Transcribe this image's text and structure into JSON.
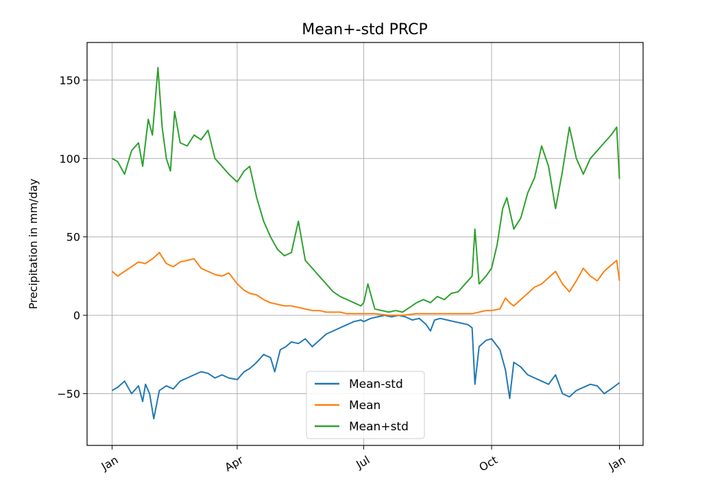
{
  "chart_data": {
    "type": "line",
    "title": "Mean+-std   PRCP",
    "xlabel": "",
    "ylabel": "Precipitation in mm/day",
    "x_ticks": [
      {
        "label": "Jan",
        "day": 1
      },
      {
        "label": "Apr",
        "day": 91
      },
      {
        "label": "Jul",
        "day": 182
      },
      {
        "label": "Oct",
        "day": 274
      },
      {
        "label": "Jan",
        "day": 366
      }
    ],
    "xlim": [
      -17,
      383
    ],
    "ylim": [
      -83,
      174
    ],
    "y_ticks": [
      -50,
      0,
      50,
      100,
      150
    ],
    "grid": true,
    "legend_position": "lower-center",
    "series": [
      {
        "name": "Mean-std",
        "color": "#1f77b4",
        "points": [
          [
            1,
            -48
          ],
          [
            5,
            -46
          ],
          [
            10,
            -42
          ],
          [
            15,
            -50
          ],
          [
            20,
            -45
          ],
          [
            23,
            -55
          ],
          [
            25,
            -44
          ],
          [
            28,
            -50
          ],
          [
            31,
            -66
          ],
          [
            35,
            -48
          ],
          [
            40,
            -45
          ],
          [
            45,
            -47
          ],
          [
            50,
            -42
          ],
          [
            55,
            -40
          ],
          [
            60,
            -38
          ],
          [
            65,
            -36
          ],
          [
            70,
            -37
          ],
          [
            75,
            -40
          ],
          [
            80,
            -38
          ],
          [
            85,
            -40
          ],
          [
            91,
            -41
          ],
          [
            96,
            -36
          ],
          [
            100,
            -34
          ],
          [
            105,
            -30
          ],
          [
            110,
            -25
          ],
          [
            115,
            -27
          ],
          [
            118,
            -36
          ],
          [
            122,
            -22
          ],
          [
            126,
            -20
          ],
          [
            130,
            -17
          ],
          [
            135,
            -18
          ],
          [
            140,
            -15
          ],
          [
            145,
            -20
          ],
          [
            150,
            -16
          ],
          [
            155,
            -12
          ],
          [
            160,
            -10
          ],
          [
            165,
            -8
          ],
          [
            170,
            -6
          ],
          [
            175,
            -4
          ],
          [
            180,
            -3
          ],
          [
            182,
            -4
          ],
          [
            187,
            -2
          ],
          [
            192,
            -1
          ],
          [
            197,
            0
          ],
          [
            202,
            -1
          ],
          [
            207,
            0
          ],
          [
            212,
            -1
          ],
          [
            217,
            -3
          ],
          [
            222,
            -2
          ],
          [
            227,
            -6
          ],
          [
            230,
            -10
          ],
          [
            233,
            -3
          ],
          [
            237,
            -2
          ],
          [
            242,
            -3
          ],
          [
            247,
            -4
          ],
          [
            252,
            -5
          ],
          [
            257,
            -6
          ],
          [
            260,
            -8
          ],
          [
            262,
            -44
          ],
          [
            265,
            -20
          ],
          [
            270,
            -16
          ],
          [
            274,
            -15
          ],
          [
            280,
            -22
          ],
          [
            284,
            -35
          ],
          [
            287,
            -53
          ],
          [
            290,
            -30
          ],
          [
            295,
            -33
          ],
          [
            300,
            -38
          ],
          [
            305,
            -40
          ],
          [
            310,
            -42
          ],
          [
            315,
            -44
          ],
          [
            320,
            -38
          ],
          [
            325,
            -50
          ],
          [
            330,
            -52
          ],
          [
            335,
            -48
          ],
          [
            340,
            -46
          ],
          [
            345,
            -44
          ],
          [
            350,
            -45
          ],
          [
            355,
            -50
          ],
          [
            360,
            -47
          ],
          [
            366,
            -43
          ]
        ]
      },
      {
        "name": "Mean",
        "color": "#ff7f0e",
        "points": [
          [
            1,
            28
          ],
          [
            5,
            25
          ],
          [
            10,
            28
          ],
          [
            15,
            31
          ],
          [
            20,
            34
          ],
          [
            25,
            33
          ],
          [
            30,
            36
          ],
          [
            35,
            40
          ],
          [
            40,
            33
          ],
          [
            45,
            31
          ],
          [
            50,
            34
          ],
          [
            55,
            35
          ],
          [
            60,
            36
          ],
          [
            65,
            30
          ],
          [
            70,
            28
          ],
          [
            75,
            26
          ],
          [
            80,
            25
          ],
          [
            85,
            27
          ],
          [
            91,
            20
          ],
          [
            96,
            16
          ],
          [
            100,
            14
          ],
          [
            105,
            13
          ],
          [
            110,
            10
          ],
          [
            115,
            8
          ],
          [
            120,
            7
          ],
          [
            125,
            6
          ],
          [
            130,
            6
          ],
          [
            135,
            5
          ],
          [
            140,
            4
          ],
          [
            145,
            3
          ],
          [
            150,
            3
          ],
          [
            155,
            2
          ],
          [
            160,
            2
          ],
          [
            165,
            2
          ],
          [
            170,
            1
          ],
          [
            175,
            1
          ],
          [
            182,
            1
          ],
          [
            190,
            1
          ],
          [
            200,
            0
          ],
          [
            210,
            0
          ],
          [
            220,
            1
          ],
          [
            230,
            1
          ],
          [
            240,
            1
          ],
          [
            250,
            1
          ],
          [
            260,
            1
          ],
          [
            265,
            2
          ],
          [
            270,
            3
          ],
          [
            274,
            3
          ],
          [
            280,
            4
          ],
          [
            284,
            11
          ],
          [
            287,
            8
          ],
          [
            290,
            6
          ],
          [
            295,
            10
          ],
          [
            300,
            14
          ],
          [
            305,
            18
          ],
          [
            310,
            20
          ],
          [
            315,
            24
          ],
          [
            320,
            28
          ],
          [
            325,
            20
          ],
          [
            330,
            15
          ],
          [
            335,
            22
          ],
          [
            340,
            30
          ],
          [
            345,
            25
          ],
          [
            350,
            22
          ],
          [
            355,
            28
          ],
          [
            360,
            32
          ],
          [
            364,
            35
          ],
          [
            366,
            22
          ]
        ]
      },
      {
        "name": "Mean+std",
        "color": "#2ca02c",
        "points": [
          [
            1,
            100
          ],
          [
            5,
            98
          ],
          [
            10,
            90
          ],
          [
            15,
            105
          ],
          [
            20,
            110
          ],
          [
            23,
            95
          ],
          [
            27,
            125
          ],
          [
            30,
            115
          ],
          [
            34,
            158
          ],
          [
            37,
            120
          ],
          [
            40,
            100
          ],
          [
            43,
            92
          ],
          [
            46,
            130
          ],
          [
            50,
            110
          ],
          [
            55,
            108
          ],
          [
            60,
            115
          ],
          [
            65,
            112
          ],
          [
            70,
            118
          ],
          [
            75,
            100
          ],
          [
            80,
            95
          ],
          [
            85,
            90
          ],
          [
            91,
            85
          ],
          [
            96,
            92
          ],
          [
            100,
            95
          ],
          [
            105,
            75
          ],
          [
            110,
            60
          ],
          [
            115,
            50
          ],
          [
            120,
            42
          ],
          [
            125,
            38
          ],
          [
            130,
            40
          ],
          [
            135,
            60
          ],
          [
            140,
            35
          ],
          [
            145,
            30
          ],
          [
            150,
            25
          ],
          [
            155,
            20
          ],
          [
            160,
            15
          ],
          [
            165,
            12
          ],
          [
            170,
            10
          ],
          [
            175,
            8
          ],
          [
            180,
            6
          ],
          [
            182,
            8
          ],
          [
            185,
            20
          ],
          [
            190,
            4
          ],
          [
            195,
            3
          ],
          [
            200,
            2
          ],
          [
            205,
            3
          ],
          [
            210,
            2
          ],
          [
            215,
            5
          ],
          [
            220,
            8
          ],
          [
            225,
            10
          ],
          [
            230,
            8
          ],
          [
            235,
            12
          ],
          [
            240,
            10
          ],
          [
            245,
            14
          ],
          [
            250,
            15
          ],
          [
            255,
            20
          ],
          [
            260,
            25
          ],
          [
            262,
            55
          ],
          [
            265,
            20
          ],
          [
            270,
            25
          ],
          [
            274,
            30
          ],
          [
            278,
            45
          ],
          [
            282,
            68
          ],
          [
            285,
            75
          ],
          [
            290,
            55
          ],
          [
            295,
            62
          ],
          [
            300,
            78
          ],
          [
            305,
            88
          ],
          [
            310,
            108
          ],
          [
            315,
            95
          ],
          [
            320,
            68
          ],
          [
            325,
            92
          ],
          [
            330,
            120
          ],
          [
            335,
            100
          ],
          [
            340,
            90
          ],
          [
            345,
            100
          ],
          [
            350,
            105
          ],
          [
            355,
            110
          ],
          [
            360,
            115
          ],
          [
            364,
            120
          ],
          [
            366,
            87
          ]
        ]
      }
    ]
  }
}
